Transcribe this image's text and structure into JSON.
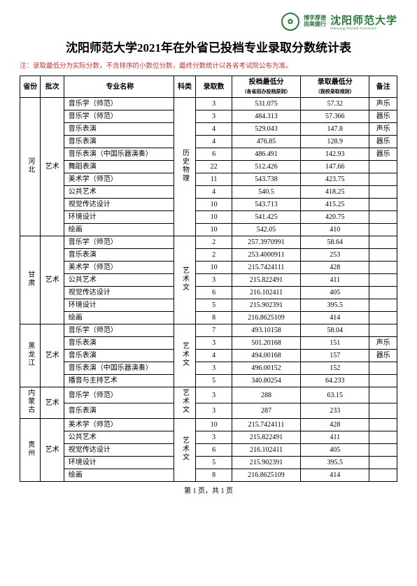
{
  "header": {
    "motto1": "博学厚德",
    "motto2": "尚美健行",
    "uni_name": "沈阳师范大学",
    "uni_sub": "Shenyang Normal University"
  },
  "title": "沈阳师范大学2021年在外省已投档专业录取分数统计表",
  "note": "注：录取最低分为实际分数，不含排序的小数位分数，最终分数统计以各省考试院公布为准。",
  "columns": {
    "province": "省份",
    "batch": "批次",
    "major": "专业名称",
    "subject": "科类",
    "count": "录取数",
    "score1": "投档最低分",
    "score1_sub": "（各省招办投档原则）",
    "score2": "录取最低分",
    "score2_sub": "（我校录取规则）",
    "remark": "备注"
  },
  "groups": [
    {
      "province": "河北",
      "batch": "艺术",
      "subject": "历史物理",
      "rows": [
        {
          "major": "音乐学（师范）",
          "count": "3",
          "s1": "531.075",
          "s2": "57.32",
          "remark": "声乐"
        },
        {
          "major": "音乐学（师范）",
          "count": "3",
          "s1": "484.313",
          "s2": "57.366",
          "remark": "器乐"
        },
        {
          "major": "音乐表演",
          "count": "4",
          "s1": "529.043",
          "s2": "147.8",
          "remark": "声乐"
        },
        {
          "major": "音乐表演",
          "count": "4",
          "s1": "476.85",
          "s2": "128.9",
          "remark": "器乐"
        },
        {
          "major": "音乐表演（中国乐器演奏）",
          "count": "6",
          "s1": "486.491",
          "s2": "142.93",
          "remark": "器乐"
        },
        {
          "major": "舞蹈表演",
          "count": "22",
          "s1": "512.426",
          "s2": "147.66",
          "remark": ""
        },
        {
          "major": "美术学（师范）",
          "count": "11",
          "s1": "543.738",
          "s2": "423.75",
          "remark": ""
        },
        {
          "major": "公共艺术",
          "count": "4",
          "s1": "540.5",
          "s2": "418.25",
          "remark": ""
        },
        {
          "major": "视觉传达设计",
          "count": "10",
          "s1": "543.713",
          "s2": "415.25",
          "remark": ""
        },
        {
          "major": "环境设计",
          "count": "10",
          "s1": "541.425",
          "s2": "420.75",
          "remark": ""
        },
        {
          "major": "绘画",
          "count": "10",
          "s1": "542.05",
          "s2": "410",
          "remark": ""
        }
      ]
    },
    {
      "province": "甘肃",
      "batch": "艺术",
      "subject": "艺术文",
      "rows": [
        {
          "major": "音乐学（师范）",
          "count": "2",
          "s1": "257.3970991",
          "s2": "58.64",
          "remark": ""
        },
        {
          "major": "音乐表演",
          "count": "2",
          "s1": "253.4000911",
          "s2": "253",
          "remark": ""
        },
        {
          "major": "美术学（师范）",
          "count": "10",
          "s1": "215.7424111",
          "s2": "428",
          "remark": ""
        },
        {
          "major": "公共艺术",
          "count": "3",
          "s1": "215.822491",
          "s2": "411",
          "remark": ""
        },
        {
          "major": "视觉传达设计",
          "count": "6",
          "s1": "216.102411",
          "s2": "405",
          "remark": ""
        },
        {
          "major": "环境设计",
          "count": "5",
          "s1": "215.902391",
          "s2": "395.5",
          "remark": ""
        },
        {
          "major": "绘画",
          "count": "8",
          "s1": "216.8625109",
          "s2": "414",
          "remark": ""
        }
      ]
    },
    {
      "province": "黑龙江",
      "batch": "艺术",
      "subject": "艺术文",
      "rows": [
        {
          "major": "音乐学（师范）",
          "count": "7",
          "s1": "493.10158",
          "s2": "58.04",
          "remark": ""
        },
        {
          "major": "音乐表演",
          "count": "3",
          "s1": "501.20168",
          "s2": "151",
          "remark": "声乐"
        },
        {
          "major": "音乐表演",
          "count": "4",
          "s1": "494.00168",
          "s2": "157",
          "remark": "器乐"
        },
        {
          "major": "音乐表演（中国乐器演奏）",
          "count": "3",
          "s1": "496.00152",
          "s2": "152",
          "remark": ""
        },
        {
          "major": "播音与主持艺术",
          "count": "5",
          "s1": "340.80254",
          "s2": "64.233",
          "remark": ""
        }
      ]
    },
    {
      "province": "内蒙古",
      "batch": "艺术",
      "subject": "艺术文",
      "rows": [
        {
          "major": "音乐学（师范）",
          "count": "3",
          "s1": "288",
          "s2": "63.15",
          "remark": ""
        },
        {
          "major": "音乐表演",
          "count": "3",
          "s1": "287",
          "s2": "233",
          "remark": ""
        }
      ]
    },
    {
      "province": "贵州",
      "batch": "艺术",
      "subject": "艺术文",
      "rows": [
        {
          "major": "美术学（师范）",
          "count": "10",
          "s1": "215.7424111",
          "s2": "428",
          "remark": ""
        },
        {
          "major": "公共艺术",
          "count": "3",
          "s1": "215.822491",
          "s2": "411",
          "remark": ""
        },
        {
          "major": "视觉传达设计",
          "count": "6",
          "s1": "216.102411",
          "s2": "405",
          "remark": ""
        },
        {
          "major": "环境设计",
          "count": "5",
          "s1": "215.902391",
          "s2": "395.5",
          "remark": ""
        },
        {
          "major": "绘画",
          "count": "8",
          "s1": "216.8625109",
          "s2": "414",
          "remark": ""
        }
      ]
    }
  ],
  "pager": "第 1 页，共 1 页"
}
